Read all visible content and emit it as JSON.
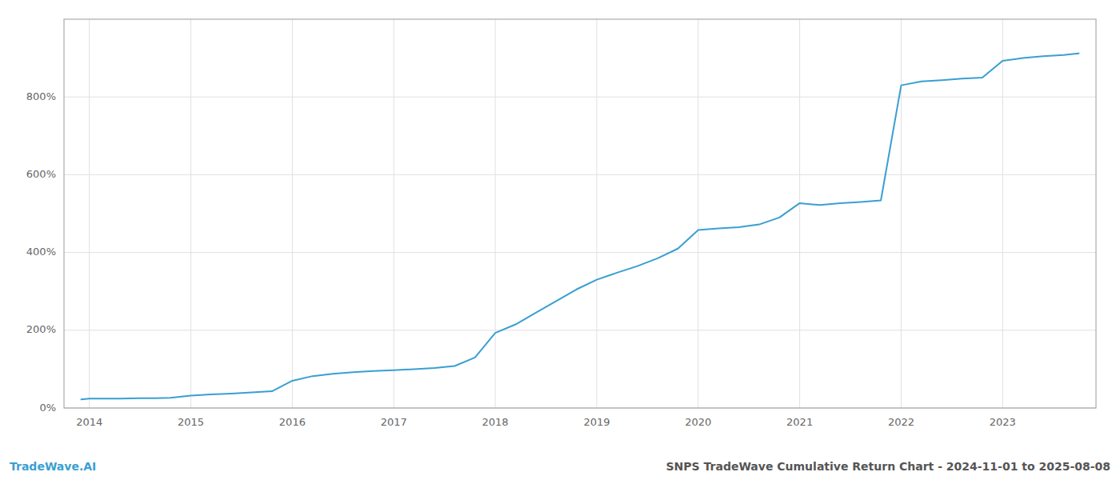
{
  "chart_data": {
    "type": "line",
    "title": "SNPS TradeWave Cumulative Return Chart - 2024-11-01 to 2025-08-08",
    "annotations": [
      "TradeWave.AI"
    ],
    "color": "#3a9fd1",
    "grid": true,
    "x": [
      2013.92,
      2014.0,
      2014.15,
      2014.3,
      2014.5,
      2014.65,
      2014.8,
      2015.0,
      2015.2,
      2015.4,
      2015.6,
      2015.8,
      2016.0,
      2016.2,
      2016.4,
      2016.6,
      2016.8,
      2017.0,
      2017.2,
      2017.4,
      2017.6,
      2017.8,
      2018.0,
      2018.2,
      2018.4,
      2018.6,
      2018.8,
      2019.0,
      2019.2,
      2019.4,
      2019.6,
      2019.8,
      2020.0,
      2020.2,
      2020.4,
      2020.6,
      2020.8,
      2021.0,
      2021.2,
      2021.4,
      2021.6,
      2021.8,
      2022.0,
      2022.2,
      2022.4,
      2022.6,
      2022.8,
      2023.0,
      2023.2,
      2023.4,
      2023.6,
      2023.75
    ],
    "values": [
      22,
      24,
      24,
      24,
      25,
      25,
      26,
      32,
      35,
      37,
      40,
      43,
      70,
      82,
      88,
      92,
      95,
      97,
      100,
      103,
      108,
      130,
      193,
      215,
      245,
      275,
      305,
      330,
      348,
      365,
      385,
      410,
      458,
      462,
      465,
      472,
      490,
      527,
      522,
      527,
      530,
      534,
      830,
      840,
      843,
      847,
      850,
      893,
      900,
      905,
      908,
      912
    ],
    "xlim": [
      2013.75,
      2023.92
    ],
    "xticks": [
      2014,
      2015,
      2016,
      2017,
      2018,
      2019,
      2020,
      2021,
      2022,
      2023
    ],
    "ylim": [
      0,
      1000
    ],
    "yticks": [
      {
        "value": 0,
        "label": "0%"
      },
      {
        "value": 200,
        "label": "200%"
      },
      {
        "value": 400,
        "label": "400%"
      },
      {
        "value": 600,
        "label": "600%"
      },
      {
        "value": 800,
        "label": "800%"
      }
    ]
  }
}
